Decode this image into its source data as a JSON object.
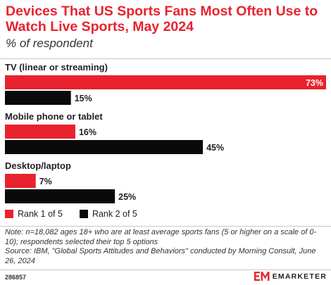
{
  "title": "Devices That US Sports Fans Most Often Use to Watch Live Sports, May 2024",
  "subtitle": "% of respondent",
  "colors": {
    "rank1": "#e8222e",
    "rank2": "#0a0a0a",
    "title": "#e8222e"
  },
  "chart_data": {
    "type": "bar",
    "orientation": "horizontal",
    "title": "Devices That US Sports Fans Most Often Use to Watch Live Sports, May 2024",
    "subtitle": "% of respondent",
    "categories": [
      "TV (linear or streaming)",
      "Mobile phone or tablet",
      "Desktop/laptop"
    ],
    "series": [
      {
        "name": "Rank 1 of 5",
        "color": "#e8222e",
        "values": [
          73,
          16,
          7
        ],
        "labels": [
          "73%",
          "16%",
          "7%"
        ]
      },
      {
        "name": "Rank 2 of 5",
        "color": "#0a0a0a",
        "values": [
          15,
          45,
          25
        ],
        "labels": [
          "15%",
          "45%",
          "25%"
        ]
      }
    ],
    "xlim": [
      0,
      73
    ],
    "grid": false,
    "legend": "bottom-left"
  },
  "legend": {
    "rank1": "Rank 1 of 5",
    "rank2": "Rank 2 of 5"
  },
  "notes": {
    "note": "Note: n=18,082 ages 18+ who are at least average sports fans (5 or higher on a scale of 0-10); respondents selected their top 5 options",
    "source": "Source: IBM, \"Global Sports Attitudes and Behaviors\" conducted by Morning Consult, June 26, 2024"
  },
  "footer": {
    "chart_id": "286857",
    "brand": "EMARKETER",
    "logo_icon": "em-logo-icon"
  }
}
